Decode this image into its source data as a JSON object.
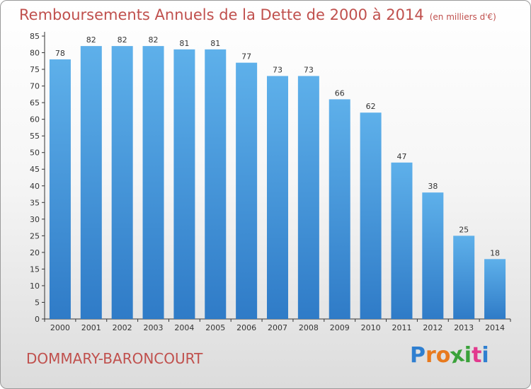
{
  "header": {
    "title": "Remboursements Annuels de la Dette de 2000 à 2014",
    "unit": "(en milliers d'€)"
  },
  "commune": "DOMMARY-BARONCOURT",
  "logo": {
    "letters": [
      "P",
      "r",
      "o",
      "x",
      "i",
      "t",
      "i"
    ],
    "colors": [
      "#2f7fd0",
      "#e87a1e",
      "#e87a1e",
      "#3aa23a",
      "#3aa23a",
      "#e23a8e",
      "#2f7fd0"
    ]
  },
  "colors": {
    "bar_top": "#5eb0ea",
    "bar_bottom": "#2f7bc7",
    "title": "#c0504d"
  },
  "chart_data": {
    "type": "bar",
    "categories": [
      "2000",
      "2001",
      "2002",
      "2003",
      "2004",
      "2005",
      "2006",
      "2007",
      "2008",
      "2009",
      "2010",
      "2011",
      "2012",
      "2013",
      "2014"
    ],
    "values": [
      78,
      82,
      82,
      82,
      81,
      81,
      77,
      73,
      73,
      66,
      62,
      47,
      38,
      25,
      18
    ],
    "yticks": [
      "0",
      "5",
      "10",
      "15",
      "20",
      "25",
      "30",
      "35",
      "40",
      "45",
      "50",
      "55",
      "60",
      "65",
      "70",
      "75",
      "80",
      "85"
    ],
    "ylim": [
      0,
      85
    ],
    "grid": false
  }
}
